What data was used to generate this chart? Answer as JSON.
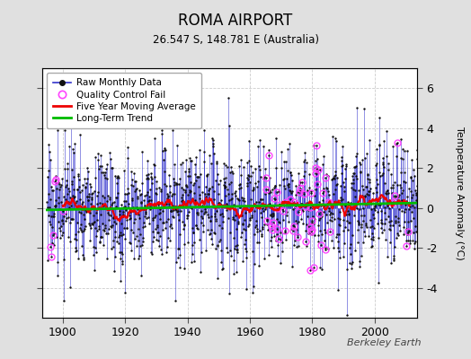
{
  "title": "ROMA AIRPORT",
  "subtitle": "26.547 S, 148.781 E (Australia)",
  "ylabel": "Temperature Anomaly (°C)",
  "credit": "Berkeley Earth",
  "year_start": 1895,
  "year_end": 2013,
  "ylim": [
    -5.5,
    7.0
  ],
  "yticks": [
    -4,
    -2,
    0,
    2,
    4,
    6
  ],
  "outer_bg_color": "#e0e0e0",
  "plot_bg_color": "#ffffff",
  "raw_line_color": "#3333cc",
  "raw_marker_color": "#111111",
  "qc_fail_color": "#ff44ff",
  "moving_avg_color": "#ee0000",
  "trend_color": "#00bb00",
  "seed": 17,
  "xticks": [
    1900,
    1920,
    1940,
    1960,
    1980,
    2000
  ]
}
